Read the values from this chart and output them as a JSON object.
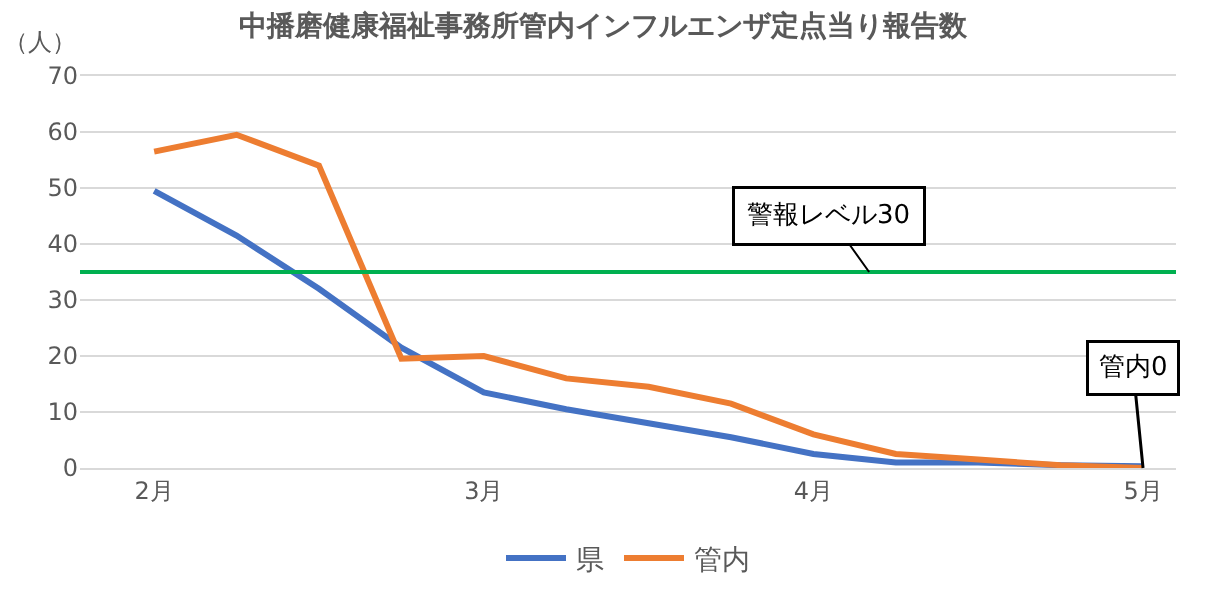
{
  "chart_data": {
    "type": "line",
    "title": "中播磨健康福祉事務所管内インフルエンザ定点当り報告数",
    "ylabel": "（人）",
    "categories": [
      "2月",
      null,
      null,
      null,
      "3月",
      null,
      null,
      null,
      "4月",
      null,
      null,
      null,
      "5月"
    ],
    "series": [
      {
        "name": "県",
        "color": "#4472c4",
        "values": [
          49.5,
          41.5,
          32,
          21.5,
          13.5,
          10.5,
          8,
          5.5,
          2.5,
          1,
          1,
          0.5,
          0.3
        ]
      },
      {
        "name": "管内",
        "color": "#ed7d31",
        "values": [
          56.5,
          59.5,
          54,
          19.5,
          20,
          16,
          14.5,
          11.5,
          6,
          2.5,
          1.5,
          0.5,
          0
        ]
      }
    ],
    "ref_lines": [
      {
        "axis": "y",
        "value": 35,
        "label": "警報レベル30",
        "color": "#00b050"
      }
    ],
    "annotations": [
      {
        "text": "管内0",
        "x": "5月",
        "y": 0
      }
    ],
    "ylim": [
      0,
      70
    ],
    "yticks": [
      0,
      10,
      20,
      30,
      40,
      50,
      60,
      70
    ],
    "grid": "y",
    "legend": "bottom",
    "marker": "none",
    "line_style": "solid"
  }
}
